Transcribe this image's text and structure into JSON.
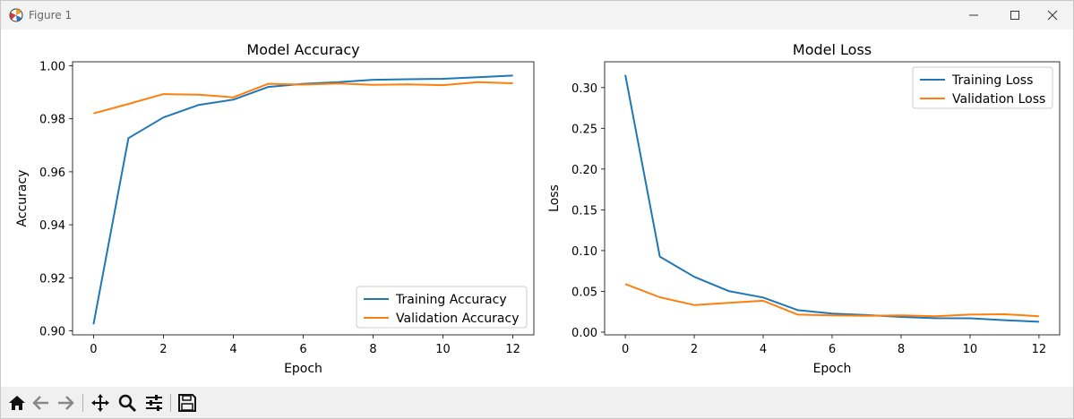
{
  "window": {
    "title": "Figure 1"
  },
  "toolbar": {
    "icons": [
      "home-icon",
      "back-icon",
      "forward-icon",
      "pan-icon",
      "zoom-icon",
      "configure-icon",
      "save-icon"
    ]
  },
  "colors": {
    "training": "#1f77b4",
    "validation": "#ff7f0e"
  },
  "chart_data": [
    {
      "type": "line",
      "title": "Model Accuracy",
      "xlabel": "Epoch",
      "ylabel": "Accuracy",
      "x": [
        0,
        1,
        2,
        3,
        4,
        5,
        6,
        7,
        8,
        9,
        10,
        11,
        12
      ],
      "xticks": [
        "0",
        "2",
        "4",
        "6",
        "8",
        "10",
        "12"
      ],
      "yticks": [
        "0.90",
        "0.92",
        "0.94",
        "0.96",
        "0.98",
        "1.00"
      ],
      "xlim": [
        -0.6,
        12.6
      ],
      "ylim": [
        0.8985,
        1.0015
      ],
      "legend_position": "lower right",
      "series": [
        {
          "name": "Training Accuracy",
          "color": "#1f77b4",
          "values": [
            0.9025,
            0.9727,
            0.9805,
            0.9852,
            0.9872,
            0.992,
            0.9932,
            0.9938,
            0.9947,
            0.9949,
            0.9951,
            0.9957,
            0.9963
          ]
        },
        {
          "name": "Validation Accuracy",
          "color": "#ff7f0e",
          "values": [
            0.982,
            0.9856,
            0.9893,
            0.9891,
            0.9881,
            0.9932,
            0.9929,
            0.9933,
            0.9928,
            0.993,
            0.9927,
            0.9938,
            0.9934
          ]
        }
      ]
    },
    {
      "type": "line",
      "title": "Model Loss",
      "xlabel": "Epoch",
      "ylabel": "Loss",
      "x": [
        0,
        1,
        2,
        3,
        4,
        5,
        6,
        7,
        8,
        9,
        10,
        11,
        12
      ],
      "xticks": [
        "0",
        "2",
        "4",
        "6",
        "8",
        "10",
        "12"
      ],
      "yticks": [
        "0.00",
        "0.05",
        "0.10",
        "0.15",
        "0.20",
        "0.25",
        "0.30"
      ],
      "xlim": [
        -0.6,
        12.6
      ],
      "ylim": [
        -0.0033,
        0.3316
      ],
      "legend_position": "upper right",
      "series": [
        {
          "name": "Training Loss",
          "color": "#1f77b4",
          "values": [
            0.3155,
            0.0927,
            0.0678,
            0.0504,
            0.0425,
            0.027,
            0.0227,
            0.021,
            0.0187,
            0.0171,
            0.017,
            0.0147,
            0.0127
          ]
        },
        {
          "name": "Validation Loss",
          "color": "#ff7f0e",
          "values": [
            0.059,
            0.0428,
            0.0333,
            0.036,
            0.0385,
            0.0215,
            0.0205,
            0.02,
            0.0205,
            0.0195,
            0.0215,
            0.022,
            0.0195
          ]
        }
      ]
    }
  ]
}
